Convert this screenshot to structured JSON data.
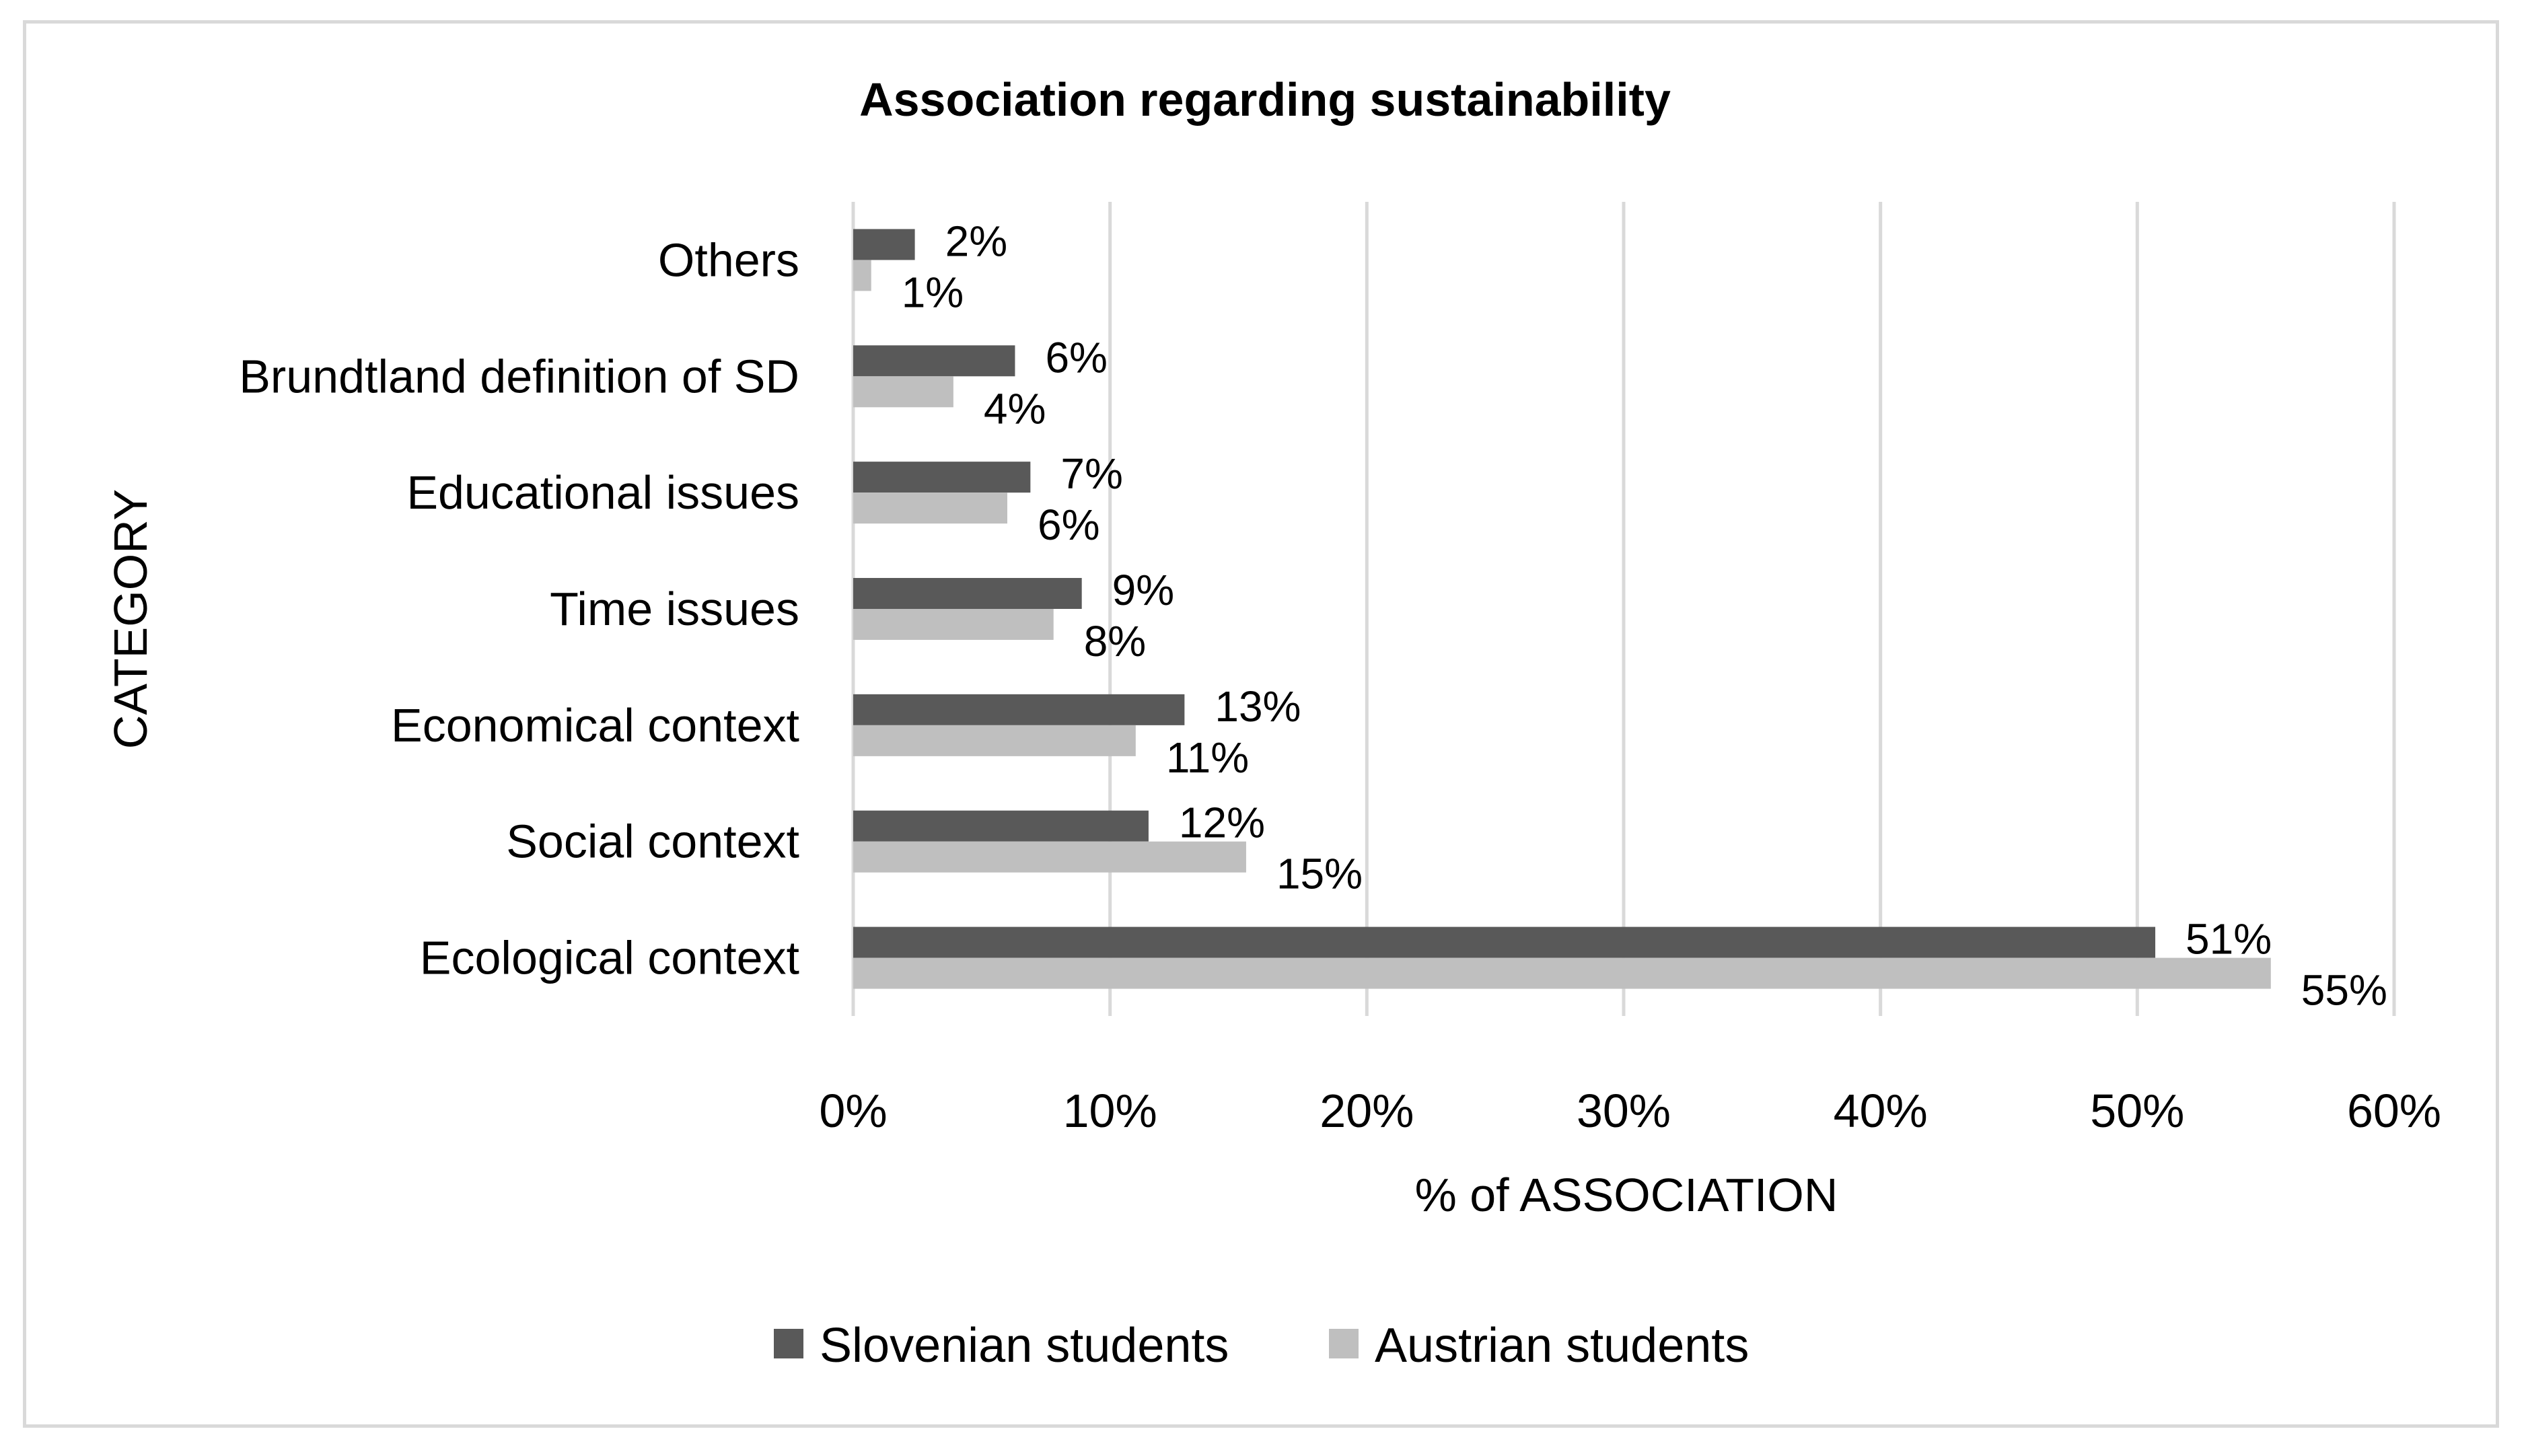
{
  "chart_data": {
    "type": "bar",
    "orientation": "horizontal",
    "title": "Association regarding sustainability",
    "xlabel": "% of ASSOCIATION",
    "ylabel": "CATEGORY",
    "xlim": [
      0,
      60
    ],
    "x_ticks": [
      "0%",
      "10%",
      "20%",
      "30%",
      "40%",
      "50%",
      "60%"
    ],
    "grid": true,
    "legend_position": "bottom",
    "categories": [
      "Others",
      "Brundtland definition of SD",
      "Educational issues",
      "Time issues",
      "Economical context",
      "Social context",
      "Ecological context"
    ],
    "series": [
      {
        "name": "Slovenian students",
        "color": "#595959",
        "values": [
          2.4,
          6.3,
          6.9,
          8.9,
          12.9,
          11.5,
          50.7
        ],
        "labels": [
          "2%",
          "6%",
          "7%",
          "9%",
          "13%",
          "12%",
          "51%"
        ]
      },
      {
        "name": "Austrian students",
        "color": "#bfbfbf",
        "values": [
          0.7,
          3.9,
          6.0,
          7.8,
          11.0,
          15.3,
          55.2
        ],
        "labels": [
          "1%",
          "4%",
          "6%",
          "8%",
          "11%",
          "15%",
          "55%"
        ]
      }
    ]
  }
}
